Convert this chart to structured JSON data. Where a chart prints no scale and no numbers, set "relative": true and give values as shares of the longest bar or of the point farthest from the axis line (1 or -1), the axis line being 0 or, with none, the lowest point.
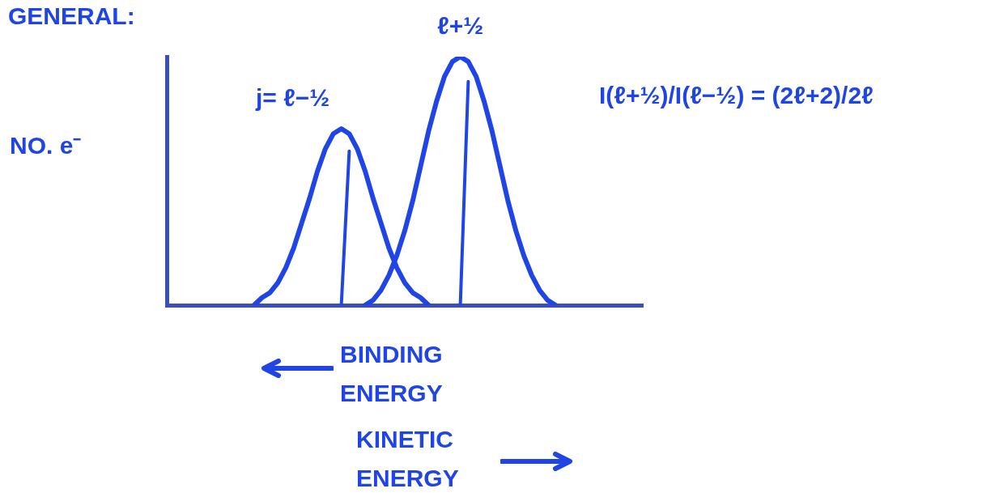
{
  "chart_data": {
    "type": "line",
    "relative": true,
    "title": "GENERAL:",
    "ylabel": "NO. e⁻",
    "grid": false,
    "legend": false,
    "marker": "none",
    "categories": [
      null,
      null,
      null,
      null,
      null,
      null,
      null,
      null,
      null,
      null,
      null,
      null,
      null,
      null,
      null,
      null,
      null,
      null,
      null,
      null,
      null,
      null,
      null,
      null,
      null,
      null,
      null,
      null,
      null,
      null,
      null,
      null,
      null,
      null,
      null,
      null,
      null,
      null,
      null,
      null,
      null,
      null,
      null,
      null,
      null,
      null,
      null,
      null,
      null,
      null,
      null,
      null,
      null,
      null,
      null,
      null,
      null,
      null,
      null,
      null,
      null
    ],
    "series": [
      {
        "name": "j= ℓ−½",
        "color": "#1f45e6",
        "values": [
          null,
          null,
          null,
          null,
          null,
          null,
          null,
          null,
          null,
          null,
          null,
          0,
          0.03,
          0.05,
          0.09,
          0.15,
          0.23,
          0.33,
          0.43,
          0.54,
          0.63,
          0.69,
          0.71,
          0.69,
          0.63,
          0.54,
          0.43,
          0.33,
          0.23,
          0.15,
          0.09,
          0.05,
          0.03,
          0,
          null,
          null,
          null,
          null,
          null,
          null,
          null,
          null,
          null,
          null,
          null,
          null,
          null,
          null,
          null,
          null,
          null,
          null,
          null,
          null,
          null,
          null,
          null,
          null,
          null,
          null,
          null
        ]
      },
      {
        "name": "ℓ+½",
        "color": "#1f45e6",
        "values": [
          null,
          null,
          null,
          null,
          null,
          null,
          null,
          null,
          null,
          null,
          null,
          null,
          null,
          null,
          null,
          null,
          null,
          null,
          null,
          null,
          null,
          null,
          null,
          null,
          null,
          0,
          0.02,
          0.06,
          0.12,
          0.2,
          0.3,
          0.42,
          0.56,
          0.7,
          0.82,
          0.92,
          0.98,
          1,
          0.98,
          0.92,
          0.82,
          0.7,
          0.56,
          0.42,
          0.3,
          0.2,
          0.12,
          0.06,
          0.02,
          0,
          null,
          null,
          null,
          null,
          null,
          null,
          null,
          null,
          null,
          null,
          null
        ]
      },
      {
        "color": "#1f45e6",
        "values": [
          null,
          null,
          null,
          null,
          null,
          null,
          null,
          null,
          null,
          null,
          null,
          null,
          null,
          null,
          null,
          null,
          null,
          null,
          null,
          null,
          null,
          null,
          0,
          0.62,
          null,
          null,
          null,
          null,
          null,
          null,
          null,
          null,
          null,
          null,
          null,
          null,
          null,
          null,
          null,
          null,
          null,
          null,
          null,
          null,
          null,
          null,
          null,
          null,
          null,
          null,
          null,
          null,
          null,
          null,
          null,
          null,
          null,
          null,
          null,
          null,
          null
        ]
      },
      {
        "color": "#1f45e6",
        "values": [
          null,
          null,
          null,
          null,
          null,
          null,
          null,
          null,
          null,
          null,
          null,
          null,
          null,
          null,
          null,
          null,
          null,
          null,
          null,
          null,
          null,
          null,
          null,
          null,
          null,
          null,
          null,
          null,
          null,
          null,
          null,
          null,
          null,
          null,
          null,
          null,
          null,
          0,
          0.9,
          null,
          null,
          null,
          null,
          null,
          null,
          null,
          null,
          null,
          null,
          null,
          null,
          null,
          null,
          null,
          null,
          null,
          null,
          null,
          null,
          null,
          null
        ]
      }
    ],
    "annotations": [
      "I(ℓ+½)/I(ℓ−½) = (2ℓ+2)/2ℓ",
      "BINDING ENERGY",
      "KINETIC ENERGY"
    ]
  }
}
